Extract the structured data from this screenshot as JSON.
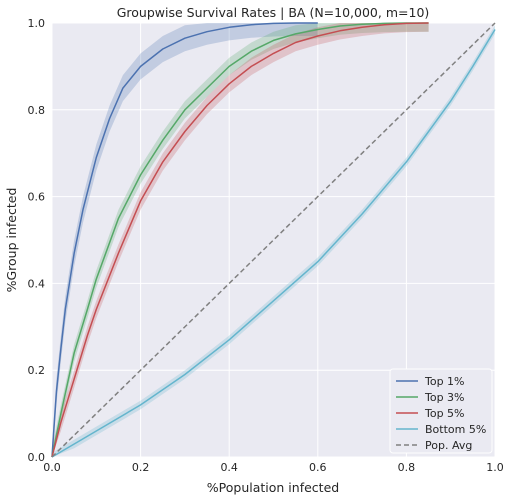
{
  "chart_data": {
    "type": "line",
    "title": "Groupwise Survival Rates | BA (N=10,000, m=10)",
    "xlabel": "%Population infected",
    "ylabel": "%Group infected",
    "xlim": [
      0,
      1
    ],
    "ylim": [
      0,
      1
    ],
    "xticks": [
      "0.0",
      "0.2",
      "0.4",
      "0.6",
      "0.8",
      "1.0"
    ],
    "yticks": [
      "0.0",
      "0.2",
      "0.4",
      "0.6",
      "0.8",
      "1.0"
    ],
    "grid": true,
    "legend_position": "bottom-right",
    "series": [
      {
        "name": "Top 1%",
        "color": "#4c72b0",
        "band": 0.03,
        "x": [
          0,
          0.01,
          0.02,
          0.03,
          0.05,
          0.07,
          0.1,
          0.13,
          0.16,
          0.2,
          0.25,
          0.3,
          0.35,
          0.4,
          0.45,
          0.5,
          0.55,
          0.6
        ],
        "y": [
          0,
          0.15,
          0.25,
          0.34,
          0.47,
          0.57,
          0.69,
          0.78,
          0.85,
          0.9,
          0.94,
          0.965,
          0.98,
          0.99,
          0.996,
          0.999,
          1.0,
          1.0
        ]
      },
      {
        "name": "Top 3%",
        "color": "#55a868",
        "band": 0.02,
        "x": [
          0,
          0.02,
          0.05,
          0.08,
          0.1,
          0.15,
          0.2,
          0.25,
          0.3,
          0.35,
          0.4,
          0.45,
          0.5,
          0.55,
          0.6,
          0.65,
          0.7,
          0.75,
          0.8,
          0.85
        ],
        "y": [
          0,
          0.1,
          0.24,
          0.34,
          0.41,
          0.55,
          0.65,
          0.73,
          0.8,
          0.85,
          0.9,
          0.935,
          0.96,
          0.975,
          0.985,
          0.993,
          0.997,
          0.999,
          1.0,
          1.0
        ]
      },
      {
        "name": "Top 5%",
        "color": "#c44e52",
        "band": 0.02,
        "x": [
          0,
          0.02,
          0.05,
          0.08,
          0.1,
          0.15,
          0.2,
          0.25,
          0.3,
          0.35,
          0.4,
          0.45,
          0.5,
          0.55,
          0.6,
          0.65,
          0.7,
          0.75,
          0.8,
          0.85
        ],
        "y": [
          0,
          0.08,
          0.18,
          0.28,
          0.34,
          0.47,
          0.59,
          0.68,
          0.75,
          0.81,
          0.86,
          0.9,
          0.93,
          0.955,
          0.97,
          0.982,
          0.99,
          0.996,
          0.999,
          1.0
        ]
      },
      {
        "name": "Bottom 5%",
        "color": "#64b5cd",
        "band": 0.01,
        "x": [
          0,
          0.05,
          0.1,
          0.2,
          0.3,
          0.4,
          0.5,
          0.6,
          0.7,
          0.8,
          0.85,
          0.9,
          0.95,
          1.0
        ],
        "y": [
          0,
          0.03,
          0.06,
          0.12,
          0.19,
          0.27,
          0.36,
          0.45,
          0.56,
          0.68,
          0.75,
          0.82,
          0.9,
          0.985
        ]
      },
      {
        "name": "Pop. Avg",
        "color": "#808080",
        "dashed": true,
        "x": [
          0,
          1
        ],
        "y": [
          0,
          1
        ]
      }
    ]
  }
}
